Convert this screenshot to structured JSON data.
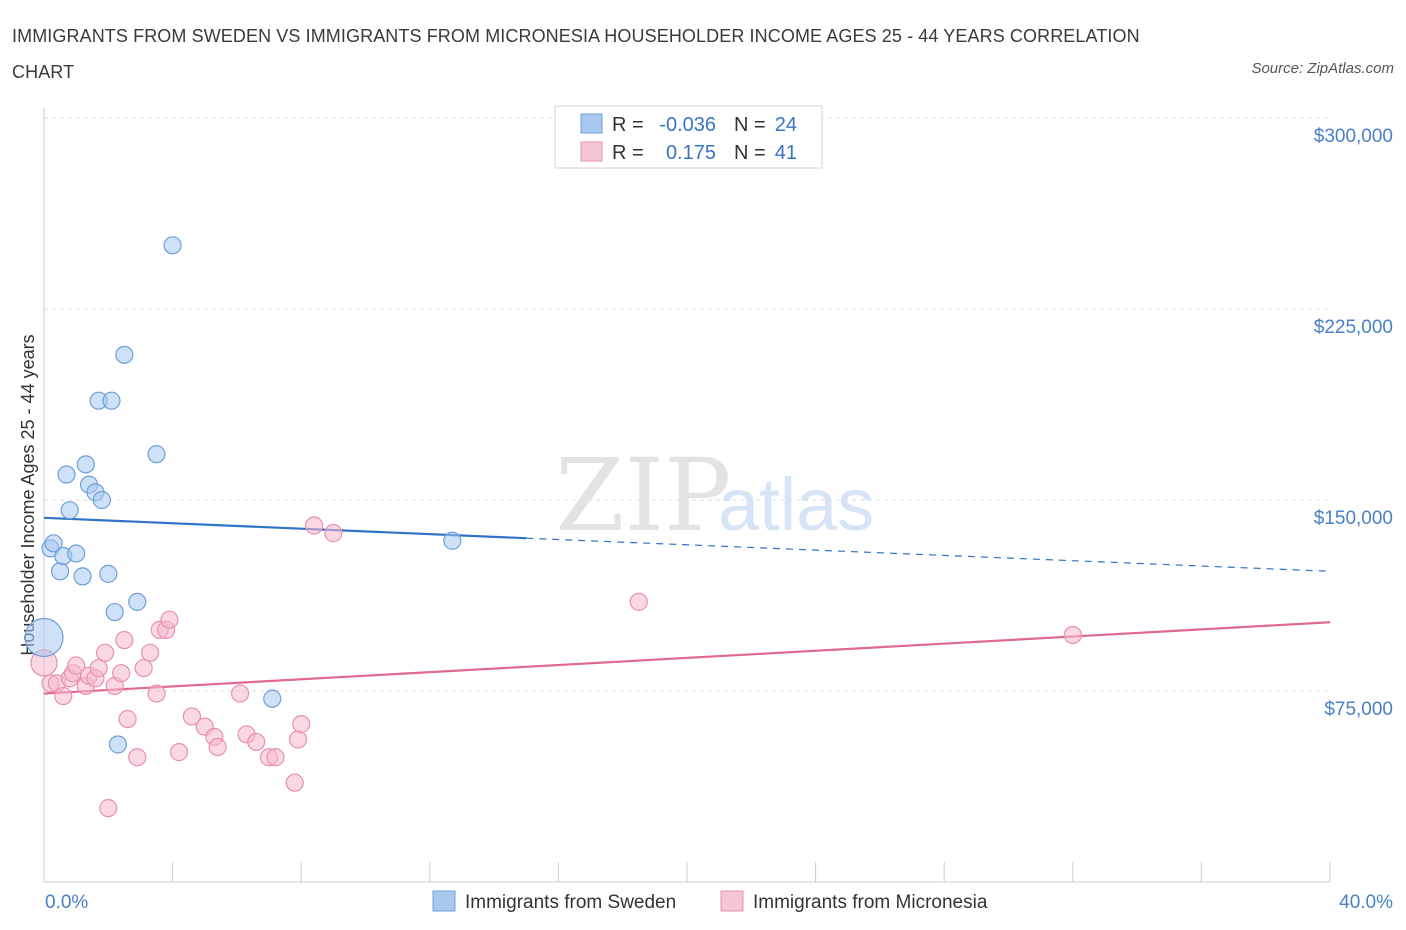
{
  "header": {
    "title": "IMMIGRANTS FROM SWEDEN VS IMMIGRANTS FROM MICRONESIA HOUSEHOLDER INCOME AGES 25 - 44 YEARS CORRELATION CHART",
    "source": "Source: ZipAtlas.com"
  },
  "watermark": {
    "zip": "ZIP",
    "atlas": "atlas"
  },
  "stats": {
    "r_label": "R =",
    "n_label": "N =",
    "sweden": {
      "r": "-0.036",
      "n": "24"
    },
    "micronesia": {
      "r": "0.175",
      "n": "41"
    }
  },
  "colors": {
    "sweden_fill": "#a8c8f0",
    "sweden_stroke": "#6f9fd8",
    "sweden_line": "#2f73c8",
    "micronesia_fill": "#f5b8cc",
    "micronesia_stroke": "#e891ad",
    "micronesia_line": "#e06892",
    "axis_text": "#4a80c8",
    "grid": "#dddddd"
  },
  "chart_data": {
    "type": "scatter",
    "title": "IMMIGRANTS FROM SWEDEN VS IMMIGRANTS FROM MICRONESIA HOUSEHOLDER INCOME AGES 25 - 44 YEARS CORRELATION CHART",
    "xlabel": "",
    "ylabel": "Householder Income Ages 25 - 44 years",
    "xlim": [
      0,
      40
    ],
    "ylim": [
      0,
      300000
    ],
    "x_tick_labels": [
      "0.0%",
      "40.0%"
    ],
    "y_ticks": [
      {
        "value": 75000,
        "label": "$75,000"
      },
      {
        "value": 150000,
        "label": "$150,000"
      },
      {
        "value": 225000,
        "label": "$225,000"
      },
      {
        "value": 300000,
        "label": "$300,000"
      }
    ],
    "grid": true,
    "legend_position": "bottom-center",
    "series": [
      {
        "name": "Immigrants from Sweden",
        "color": "#a8c8f0",
        "trend": {
          "x": [
            0,
            15,
            40
          ],
          "y": [
            143000,
            135000,
            122000
          ],
          "solid_until": 15
        },
        "points": [
          {
            "x": 0.0,
            "y": 96000,
            "size": "large"
          },
          {
            "x": 0.2,
            "y": 131000
          },
          {
            "x": 0.3,
            "y": 133000
          },
          {
            "x": 0.5,
            "y": 122000
          },
          {
            "x": 0.6,
            "y": 128000
          },
          {
            "x": 0.7,
            "y": 160000
          },
          {
            "x": 0.8,
            "y": 146000
          },
          {
            "x": 1.0,
            "y": 129000
          },
          {
            "x": 1.2,
            "y": 120000
          },
          {
            "x": 1.3,
            "y": 164000
          },
          {
            "x": 1.4,
            "y": 156000
          },
          {
            "x": 1.6,
            "y": 153000
          },
          {
            "x": 1.7,
            "y": 189000
          },
          {
            "x": 1.8,
            "y": 150000
          },
          {
            "x": 2.0,
            "y": 121000
          },
          {
            "x": 2.1,
            "y": 189000
          },
          {
            "x": 2.2,
            "y": 106000
          },
          {
            "x": 2.3,
            "y": 54000
          },
          {
            "x": 2.5,
            "y": 207000
          },
          {
            "x": 2.9,
            "y": 110000
          },
          {
            "x": 3.5,
            "y": 168000
          },
          {
            "x": 4.0,
            "y": 250000
          },
          {
            "x": 7.1,
            "y": 72000
          },
          {
            "x": 12.7,
            "y": 134000
          }
        ]
      },
      {
        "name": "Immigrants from Micronesia",
        "color": "#f5b8cc",
        "trend": {
          "x": [
            0,
            40
          ],
          "y": [
            74000,
            102000
          ]
        },
        "points": [
          {
            "x": 0.0,
            "y": 86000,
            "size": "medium"
          },
          {
            "x": 0.2,
            "y": 78000
          },
          {
            "x": 0.4,
            "y": 78000
          },
          {
            "x": 0.6,
            "y": 73000
          },
          {
            "x": 0.8,
            "y": 80000
          },
          {
            "x": 0.9,
            "y": 82000
          },
          {
            "x": 1.0,
            "y": 85000
          },
          {
            "x": 1.3,
            "y": 77000
          },
          {
            "x": 1.4,
            "y": 81000
          },
          {
            "x": 1.6,
            "y": 80000
          },
          {
            "x": 1.7,
            "y": 84000
          },
          {
            "x": 1.9,
            "y": 90000
          },
          {
            "x": 2.0,
            "y": 29000
          },
          {
            "x": 2.2,
            "y": 77000
          },
          {
            "x": 2.4,
            "y": 82000
          },
          {
            "x": 2.5,
            "y": 95000
          },
          {
            "x": 2.6,
            "y": 64000
          },
          {
            "x": 2.9,
            "y": 49000
          },
          {
            "x": 3.1,
            "y": 84000
          },
          {
            "x": 3.3,
            "y": 90000
          },
          {
            "x": 3.5,
            "y": 74000
          },
          {
            "x": 3.6,
            "y": 99000
          },
          {
            "x": 3.8,
            "y": 99000
          },
          {
            "x": 3.9,
            "y": 103000
          },
          {
            "x": 4.2,
            "y": 51000
          },
          {
            "x": 4.6,
            "y": 65000
          },
          {
            "x": 5.0,
            "y": 61000
          },
          {
            "x": 5.3,
            "y": 57000
          },
          {
            "x": 5.4,
            "y": 53000
          },
          {
            "x": 6.1,
            "y": 74000
          },
          {
            "x": 6.3,
            "y": 58000
          },
          {
            "x": 6.6,
            "y": 55000
          },
          {
            "x": 7.0,
            "y": 49000
          },
          {
            "x": 7.2,
            "y": 49000
          },
          {
            "x": 7.8,
            "y": 39000
          },
          {
            "x": 7.9,
            "y": 56000
          },
          {
            "x": 8.0,
            "y": 62000
          },
          {
            "x": 8.4,
            "y": 140000
          },
          {
            "x": 9.0,
            "y": 137000
          },
          {
            "x": 18.5,
            "y": 110000
          },
          {
            "x": 32.0,
            "y": 97000
          }
        ]
      }
    ]
  }
}
